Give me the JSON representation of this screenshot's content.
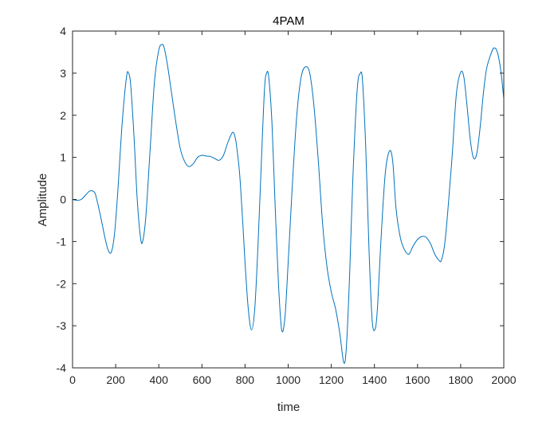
{
  "chart_data": {
    "type": "line",
    "title": "4PAM",
    "xlabel": "time",
    "ylabel": "Amplitude",
    "xlim": [
      0,
      2000
    ],
    "ylim": [
      -4,
      4
    ],
    "xticks": [
      0,
      200,
      400,
      600,
      800,
      1000,
      1200,
      1400,
      1600,
      1800,
      2000
    ],
    "yticks": [
      -4,
      -3,
      -2,
      -1,
      0,
      1,
      2,
      3,
      4
    ],
    "grid": false,
    "line_color": "#0072BD",
    "series": [
      {
        "x": [
          0,
          20,
          40,
          60,
          80,
          100,
          110,
          130,
          150,
          165,
          180,
          195,
          210,
          230,
          250,
          260,
          270,
          285,
          300,
          315,
          325,
          340,
          360,
          380,
          400,
          415,
          425,
          440,
          460,
          480,
          500,
          520,
          540,
          560,
          580,
          600,
          620,
          640,
          660,
          680,
          700,
          720,
          740,
          750,
          760,
          775,
          790,
          800,
          815,
          830,
          845,
          860,
          875,
          890,
          900,
          910,
          925,
          940,
          955,
          970,
          985,
          1000,
          1020,
          1040,
          1060,
          1080,
          1100,
          1120,
          1140,
          1160,
          1180,
          1200,
          1220,
          1240,
          1258,
          1270,
          1285,
          1300,
          1320,
          1335,
          1345,
          1360,
          1375,
          1390,
          1405,
          1415,
          1430,
          1450,
          1470,
          1485,
          1500,
          1520,
          1540,
          1560,
          1580,
          1600,
          1620,
          1640,
          1660,
          1680,
          1700,
          1710,
          1725,
          1740,
          1760,
          1780,
          1800,
          1815,
          1830,
          1845,
          1860,
          1875,
          1890,
          1905,
          1920,
          1940,
          1955,
          1970,
          1985,
          2000
        ],
        "y": [
          0,
          -0.02,
          0,
          0.1,
          0.2,
          0.18,
          0.05,
          -0.4,
          -0.9,
          -1.2,
          -1.25,
          -0.8,
          0.2,
          1.8,
          2.9,
          3.0,
          2.7,
          1.5,
          0.0,
          -0.9,
          -1.0,
          -0.4,
          1.2,
          2.8,
          3.55,
          3.68,
          3.6,
          3.2,
          2.5,
          1.8,
          1.2,
          0.9,
          0.78,
          0.85,
          1.0,
          1.05,
          1.03,
          1.02,
          0.97,
          0.93,
          1.05,
          1.35,
          1.58,
          1.55,
          1.3,
          0.6,
          -0.6,
          -1.5,
          -2.6,
          -3.1,
          -2.6,
          -1.1,
          0.8,
          2.6,
          3.0,
          2.9,
          1.8,
          -0.2,
          -2.0,
          -3.1,
          -2.8,
          -1.5,
          0.4,
          2.0,
          2.9,
          3.15,
          3.0,
          2.2,
          0.9,
          -0.6,
          -1.6,
          -2.2,
          -2.6,
          -3.2,
          -3.88,
          -3.5,
          -1.8,
          0.5,
          2.6,
          3.0,
          2.8,
          1.2,
          -1.2,
          -2.9,
          -3.05,
          -2.5,
          -1.0,
          0.6,
          1.15,
          0.9,
          -0.2,
          -0.9,
          -1.2,
          -1.3,
          -1.1,
          -0.95,
          -0.88,
          -0.9,
          -1.05,
          -1.3,
          -1.45,
          -1.45,
          -1.1,
          -0.3,
          1.0,
          2.5,
          3.02,
          2.9,
          2.2,
          1.4,
          0.98,
          1.1,
          1.7,
          2.5,
          3.1,
          3.45,
          3.6,
          3.5,
          3.1,
          2.4
        ]
      }
    ]
  }
}
